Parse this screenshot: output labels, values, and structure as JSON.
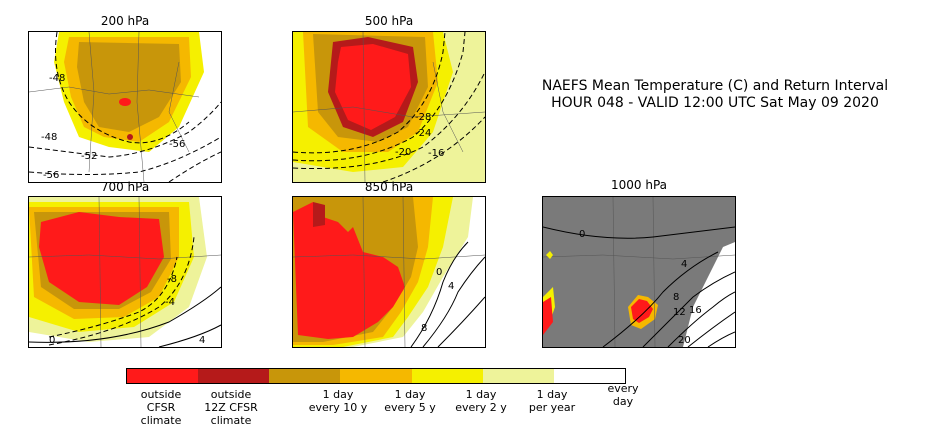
{
  "title": {
    "line1": "NAEFS Mean Temperature (C) and Return Interval",
    "line2": "HOUR 048 - VALID 12:00 UTC Sat May 09 2020"
  },
  "panels": [
    {
      "level": "200 hPa",
      "contours": [
        "-48",
        "-48",
        "-52",
        "-56",
        "-56"
      ]
    },
    {
      "level": "500 hPa",
      "contours": [
        "-28",
        "-24",
        "-20",
        "-16"
      ]
    },
    {
      "level": "700 hPa",
      "contours": [
        "-8",
        "-4",
        "0",
        "4"
      ]
    },
    {
      "level": "850 hPa",
      "contours": [
        "0",
        "4",
        "8"
      ]
    },
    {
      "level": "1000 hPa",
      "contours": [
        "0",
        "4",
        "8",
        "12",
        "16",
        "20"
      ]
    }
  ],
  "colors": {
    "outside_cfsr": "#ff1a1a",
    "outside_12z": "#b51a1a",
    "every_10y": "#c8960a",
    "every_5y": "#f5b800",
    "every_2y": "#f5f000",
    "per_year": "#eef39a",
    "every_day": "#ffffff",
    "land_gray": "#7a7a7a"
  },
  "legend": [
    {
      "label": "outside\nCFSR\nclimate",
      "color": "#ff1a1a"
    },
    {
      "label": "outside\n12Z CFSR\nclimate",
      "color": "#b51a1a"
    },
    {
      "label": "",
      "color": "#c8960a"
    },
    {
      "label": "1 day\nevery 10 y",
      "color": "#f5b800"
    },
    {
      "label": "1 day\nevery 5 y",
      "color": "#f5f000"
    },
    {
      "label": "1 day\nevery 2 y",
      "color": "#eef39a"
    },
    {
      "label": "1 day\nper year",
      "color": "#ffffff"
    },
    {
      "label": "every\nday",
      "color": "#ffffff"
    }
  ]
}
